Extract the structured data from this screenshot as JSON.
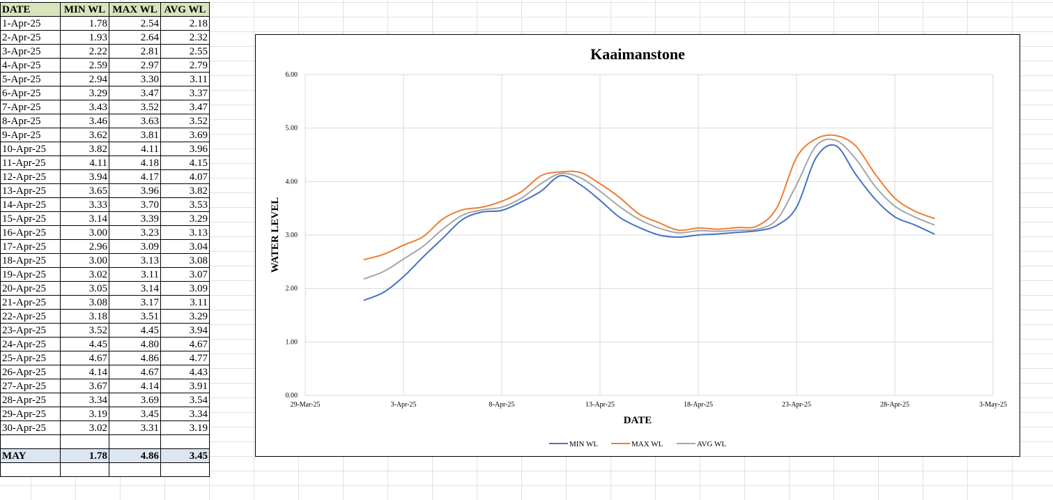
{
  "table": {
    "headers": [
      "DATE",
      "MIN WL",
      "MAX WL",
      "AVG WL"
    ],
    "rows": [
      [
        "1-Apr-25",
        "1.78",
        "2.54",
        "2.18"
      ],
      [
        "2-Apr-25",
        "1.93",
        "2.64",
        "2.32"
      ],
      [
        "3-Apr-25",
        "2.22",
        "2.81",
        "2.55"
      ],
      [
        "4-Apr-25",
        "2.59",
        "2.97",
        "2.79"
      ],
      [
        "5-Apr-25",
        "2.94",
        "3.30",
        "3.11"
      ],
      [
        "6-Apr-25",
        "3.29",
        "3.47",
        "3.37"
      ],
      [
        "7-Apr-25",
        "3.43",
        "3.52",
        "3.47"
      ],
      [
        "8-Apr-25",
        "3.46",
        "3.63",
        "3.52"
      ],
      [
        "9-Apr-25",
        "3.62",
        "3.81",
        "3.69"
      ],
      [
        "10-Apr-25",
        "3.82",
        "4.11",
        "3.96"
      ],
      [
        "11-Apr-25",
        "4.11",
        "4.18",
        "4.15"
      ],
      [
        "12-Apr-25",
        "3.94",
        "4.17",
        "4.07"
      ],
      [
        "13-Apr-25",
        "3.65",
        "3.96",
        "3.82"
      ],
      [
        "14-Apr-25",
        "3.33",
        "3.70",
        "3.53"
      ],
      [
        "15-Apr-25",
        "3.14",
        "3.39",
        "3.29"
      ],
      [
        "16-Apr-25",
        "3.00",
        "3.23",
        "3.13"
      ],
      [
        "17-Apr-25",
        "2.96",
        "3.09",
        "3.04"
      ],
      [
        "18-Apr-25",
        "3.00",
        "3.13",
        "3.08"
      ],
      [
        "19-Apr-25",
        "3.02",
        "3.11",
        "3.07"
      ],
      [
        "20-Apr-25",
        "3.05",
        "3.14",
        "3.09"
      ],
      [
        "21-Apr-25",
        "3.08",
        "3.17",
        "3.11"
      ],
      [
        "22-Apr-25",
        "3.18",
        "3.51",
        "3.29"
      ],
      [
        "23-Apr-25",
        "3.52",
        "4.45",
        "3.94"
      ],
      [
        "24-Apr-25",
        "4.45",
        "4.80",
        "4.67"
      ],
      [
        "25-Apr-25",
        "4.67",
        "4.86",
        "4.77"
      ],
      [
        "26-Apr-25",
        "4.14",
        "4.67",
        "4.43"
      ],
      [
        "27-Apr-25",
        "3.67",
        "4.14",
        "3.91"
      ],
      [
        "28-Apr-25",
        "3.34",
        "3.69",
        "3.54"
      ],
      [
        "29-Apr-25",
        "3.19",
        "3.45",
        "3.34"
      ],
      [
        "30-Apr-25",
        "3.02",
        "3.31",
        "3.19"
      ]
    ],
    "summary": [
      "MAY",
      "1.78",
      "4.86",
      "3.45"
    ]
  },
  "colors": {
    "header_bg": "#d8e4bc",
    "summary_bg": "#dce6f1",
    "min_series": "#4472c4",
    "max_series": "#ed7d31",
    "avg_series": "#a5a5a5",
    "gridline": "#d9d9d9"
  },
  "chart_data": {
    "type": "line",
    "title": "Kaaimanstone",
    "xlabel": "DATE",
    "ylabel": "WATER LEVEL",
    "ylim": [
      0,
      6
    ],
    "y_ticks": [
      "0.00",
      "1.00",
      "2.00",
      "3.00",
      "4.00",
      "5.00",
      "6.00"
    ],
    "x_range": [
      "29-Mar-25",
      "3-May-25"
    ],
    "x_ticks": [
      "29-Mar-25",
      "3-Apr-25",
      "8-Apr-25",
      "13-Apr-25",
      "18-Apr-25",
      "23-Apr-25",
      "28-Apr-25",
      "3-May-25"
    ],
    "grid": true,
    "smooth": true,
    "legend_position": "bottom",
    "x": [
      "2025-04-01",
      "2025-04-02",
      "2025-04-03",
      "2025-04-04",
      "2025-04-05",
      "2025-04-06",
      "2025-04-07",
      "2025-04-08",
      "2025-04-09",
      "2025-04-10",
      "2025-04-11",
      "2025-04-12",
      "2025-04-13",
      "2025-04-14",
      "2025-04-15",
      "2025-04-16",
      "2025-04-17",
      "2025-04-18",
      "2025-04-19",
      "2025-04-20",
      "2025-04-21",
      "2025-04-22",
      "2025-04-23",
      "2025-04-24",
      "2025-04-25",
      "2025-04-26",
      "2025-04-27",
      "2025-04-28",
      "2025-04-29",
      "2025-04-30"
    ],
    "series": [
      {
        "name": "MIN WL",
        "color": "#4472c4",
        "values": [
          1.78,
          1.93,
          2.22,
          2.59,
          2.94,
          3.29,
          3.43,
          3.46,
          3.62,
          3.82,
          4.11,
          3.94,
          3.65,
          3.33,
          3.14,
          3.0,
          2.96,
          3.0,
          3.02,
          3.05,
          3.08,
          3.18,
          3.52,
          4.45,
          4.67,
          4.14,
          3.67,
          3.34,
          3.19,
          3.02
        ]
      },
      {
        "name": "MAX WL",
        "color": "#ed7d31",
        "values": [
          2.54,
          2.64,
          2.81,
          2.97,
          3.3,
          3.47,
          3.52,
          3.63,
          3.81,
          4.11,
          4.18,
          4.17,
          3.96,
          3.7,
          3.39,
          3.23,
          3.09,
          3.13,
          3.11,
          3.14,
          3.17,
          3.51,
          4.45,
          4.8,
          4.86,
          4.67,
          4.14,
          3.69,
          3.45,
          3.31
        ]
      },
      {
        "name": "AVG WL",
        "color": "#a5a5a5",
        "values": [
          2.18,
          2.32,
          2.55,
          2.79,
          3.11,
          3.37,
          3.47,
          3.52,
          3.69,
          3.96,
          4.15,
          4.07,
          3.82,
          3.53,
          3.29,
          3.13,
          3.04,
          3.08,
          3.07,
          3.09,
          3.11,
          3.29,
          3.94,
          4.67,
          4.77,
          4.43,
          3.91,
          3.54,
          3.34,
          3.19
        ]
      }
    ]
  }
}
